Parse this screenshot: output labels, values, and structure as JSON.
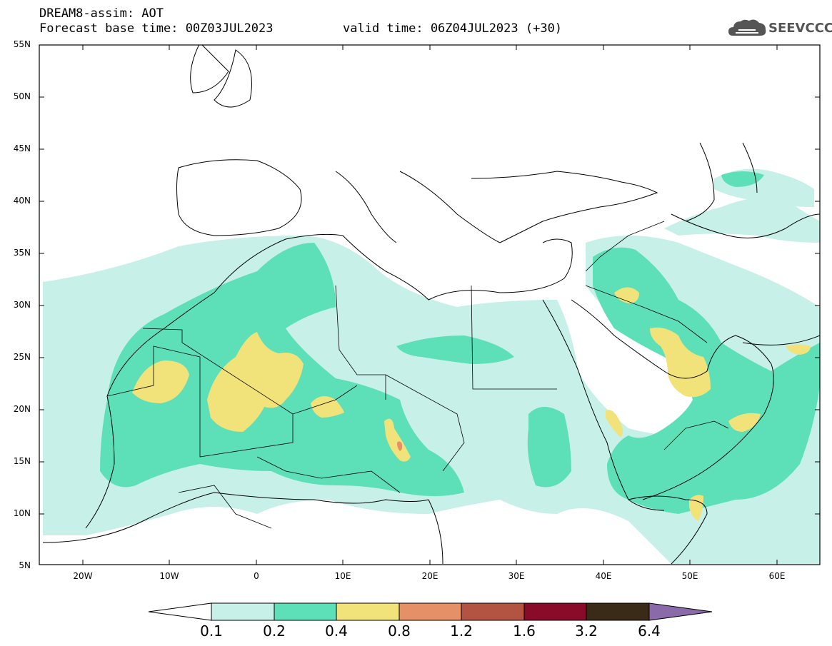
{
  "header": {
    "line1": "DREAM8-assim: AOT",
    "line2": "Forecast base time: 00Z03JUL2023",
    "line3": "valid time: 06Z04JUL2023 (+30)"
  },
  "logo": {
    "text": "SEEVCCC",
    "icon": "cloud-icon"
  },
  "map": {
    "lat_labels": [
      "55N",
      "50N",
      "45N",
      "40N",
      "35N",
      "30N",
      "25N",
      "20N",
      "15N",
      "10N",
      "5N"
    ],
    "lon_labels": [
      "20W",
      "10W",
      "0",
      "10E",
      "20E",
      "30E",
      "40E",
      "50E",
      "60E"
    ]
  },
  "colorbar": {
    "labels": [
      "0.1",
      "0.2",
      "0.4",
      "0.8",
      "1.2",
      "1.6",
      "3.2",
      "6.4"
    ],
    "colors": [
      "#ffffff",
      "#c7f0e9",
      "#5de0b8",
      "#f2e27a",
      "#e59066",
      "#b35442",
      "#8a0a2a",
      "#3a2a18",
      "#8a6aa8"
    ]
  }
}
